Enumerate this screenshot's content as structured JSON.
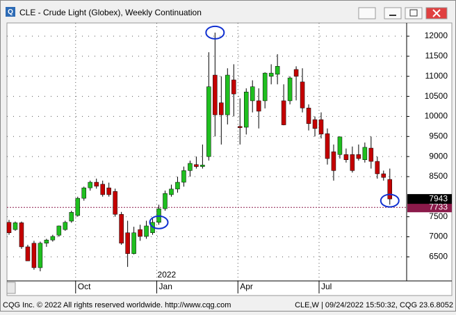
{
  "window": {
    "title": "CLE - Crude Light (Globex), Weekly Continuation"
  },
  "chart_data": {
    "type": "candlestick",
    "categories": [
      null,
      null,
      null,
      null,
      null,
      null,
      null,
      null,
      null,
      null,
      null,
      "Oct",
      null,
      null,
      null,
      null,
      null,
      null,
      null,
      null,
      null,
      null,
      null,
      null,
      "Jan",
      null,
      null,
      null,
      null,
      null,
      null,
      null,
      null,
      null,
      null,
      null,
      null,
      "Apr",
      null,
      null,
      null,
      null,
      null,
      null,
      null,
      null,
      null,
      null,
      null,
      null,
      "Jul",
      null,
      null,
      null,
      null,
      null,
      null,
      null,
      null,
      null,
      null,
      null
    ],
    "open": [
      7360,
      7180,
      7350,
      6750,
      6840,
      6230,
      6840,
      6920,
      7040,
      7180,
      7390,
      7530,
      7960,
      8220,
      8360,
      8310,
      8220,
      8130,
      7560,
      7100,
      6580,
      7180,
      7010,
      7100,
      7360,
      7700,
      8050,
      8190,
      8360,
      8650,
      8800,
      8750,
      9000,
      11030,
      10340,
      10040,
      10910,
      9750,
      9730,
      10390,
      10390,
      10390,
      11000,
      11050,
      10390,
      10390,
      11170,
      10860,
      10210,
      9920,
      9920,
      9570,
      9120,
      9050,
      9050,
      9050,
      9050,
      8920,
      9210,
      8880,
      8570,
      8430
    ],
    "high": [
      7420,
      7380,
      7380,
      6800,
      6900,
      6880,
      6950,
      7050,
      7280,
      7400,
      7650,
      8000,
      8250,
      8400,
      8450,
      8400,
      8350,
      8200,
      7620,
      7400,
      7250,
      7300,
      7400,
      7450,
      7800,
      8150,
      8300,
      8500,
      8750,
      8900,
      9000,
      9300,
      11600,
      12090,
      11000,
      11200,
      11300,
      10450,
      10700,
      10900,
      10700,
      11100,
      11300,
      11550,
      10800,
      11000,
      11250,
      11200,
      10300,
      10000,
      10100,
      9700,
      9300,
      9500,
      9200,
      9250,
      9300,
      9350,
      9500,
      9000,
      8650,
      8700
    ],
    "low": [
      7050,
      7150,
      6700,
      6400,
      6180,
      6140,
      6750,
      6880,
      7000,
      7150,
      7350,
      7500,
      7900,
      8150,
      8200,
      8000,
      8000,
      7500,
      6800,
      6250,
      6560,
      6900,
      6950,
      7050,
      7300,
      7650,
      8000,
      8100,
      8250,
      8500,
      8700,
      8700,
      8900,
      9500,
      9300,
      9800,
      10000,
      9300,
      9550,
      10100,
      9700,
      10200,
      10800,
      10800,
      9780,
      10300,
      10400,
      10100,
      9650,
      9500,
      9450,
      8800,
      8400,
      8950,
      8850,
      8600,
      8900,
      8850,
      8700,
      8450,
      8400,
      7800
    ],
    "close": [
      7100,
      7350,
      6750,
      6400,
      6230,
      6840,
      6920,
      7010,
      7270,
      7360,
      7610,
      7960,
      8220,
      8360,
      8260,
      8050,
      8050,
      7560,
      6840,
      6580,
      7100,
      7010,
      7270,
      7360,
      7700,
      8080,
      8190,
      8360,
      8650,
      8830,
      8750,
      8790,
      10740,
      10040,
      10040,
      11030,
      10560,
      9720,
      10610,
      10740,
      10130,
      11080,
      11080,
      11250,
      9790,
      10960,
      11000,
      10210,
      9820,
      9700,
      9560,
      8950,
      8650,
      9490,
      8920,
      8650,
      8950,
      9230,
      8880,
      8570,
      8480,
      7943
    ],
    "up_color": "#1fbf1f",
    "down_color": "#c40000",
    "ylim": [
      5900,
      12330
    ],
    "yticks": [
      6500,
      7000,
      7500,
      8500,
      9000,
      9500,
      10000,
      10500,
      11000,
      11500,
      12000
    ],
    "grid": true,
    "year_label": "2022",
    "last_price": {
      "value": 7943,
      "color": "#000000"
    },
    "level_line": {
      "value": 7733,
      "color": "#8b1a4a"
    }
  },
  "footer": {
    "left": "CQG Inc. © 2022 All rights reserved worldwide. http://www.cqg.com",
    "right": "CLE,W | 09/24/2022 15:50:32, CQG 23.6.8052"
  }
}
